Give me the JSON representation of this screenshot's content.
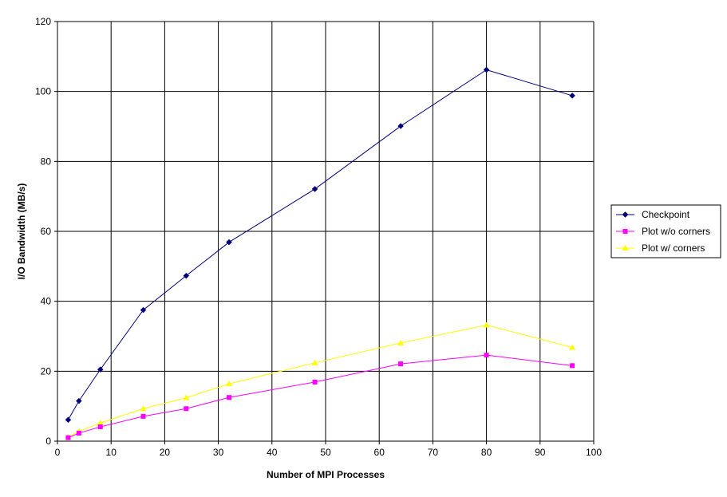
{
  "chart_data": {
    "type": "line",
    "title": "",
    "xlabel": "Number of MPI Processes",
    "ylabel": "I/O Bandwidth (MB/s)",
    "xlim": [
      0,
      100
    ],
    "ylim": [
      0,
      120
    ],
    "xticks": [
      0,
      10,
      20,
      30,
      40,
      50,
      60,
      70,
      80,
      90,
      100
    ],
    "yticks": [
      0,
      20,
      40,
      60,
      80,
      100,
      120
    ],
    "grid": true,
    "legend_position": "right",
    "x": [
      2,
      4,
      8,
      16,
      24,
      32,
      48,
      64,
      80,
      96
    ],
    "series": [
      {
        "name": "Checkpoint",
        "color": "#000080",
        "marker": "diamond",
        "values": [
          6.1,
          11.5,
          20.5,
          37.5,
          47.3,
          56.9,
          72.1,
          90.1,
          106.2,
          98.8
        ]
      },
      {
        "name": "Plot w/o corners",
        "color": "#FF00FF",
        "marker": "square",
        "values": [
          1.0,
          2.3,
          4.1,
          7.1,
          9.3,
          12.5,
          16.9,
          22.1,
          24.6,
          21.6
        ]
      },
      {
        "name": "Plot w/ corners",
        "color": "#FFFF00",
        "marker": "triangle",
        "values": [
          1.2,
          2.8,
          5.2,
          9.3,
          12.4,
          16.4,
          22.4,
          28.1,
          33.2,
          26.8
        ]
      }
    ]
  }
}
